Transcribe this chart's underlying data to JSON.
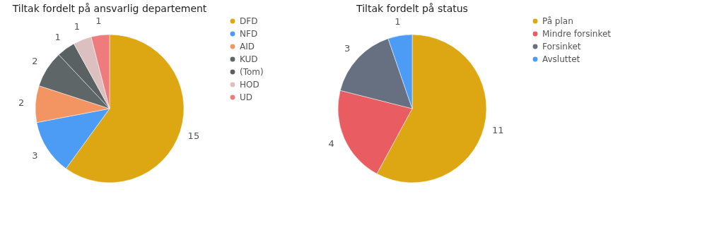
{
  "chart_data": [
    {
      "type": "pie",
      "title": "Tiltak fordelt på ansvarlig departement",
      "categories": [
        "DFD",
        "NFD",
        "AID",
        "KUD",
        "(Tom)",
        "HOD",
        "UD"
      ],
      "values": [
        15,
        3,
        2,
        2,
        1,
        1,
        1
      ],
      "colors": [
        "#dda713",
        "#4c9bf5",
        "#f29563",
        "#5f6668",
        "#5a6163",
        "#dcbfbf",
        "#ee7b7e"
      ],
      "data_labels": true,
      "legend": "right"
    },
    {
      "type": "pie",
      "title": "Tiltak fordelt på status",
      "categories": [
        "På plan",
        "Mindre forsinket",
        "Forsinket",
        "Avsluttet"
      ],
      "values": [
        11,
        4,
        3,
        1
      ],
      "colors": [
        "#dda713",
        "#e85c62",
        "#667080",
        "#4c9bf5"
      ],
      "data_labels": true,
      "legend": "right"
    }
  ]
}
